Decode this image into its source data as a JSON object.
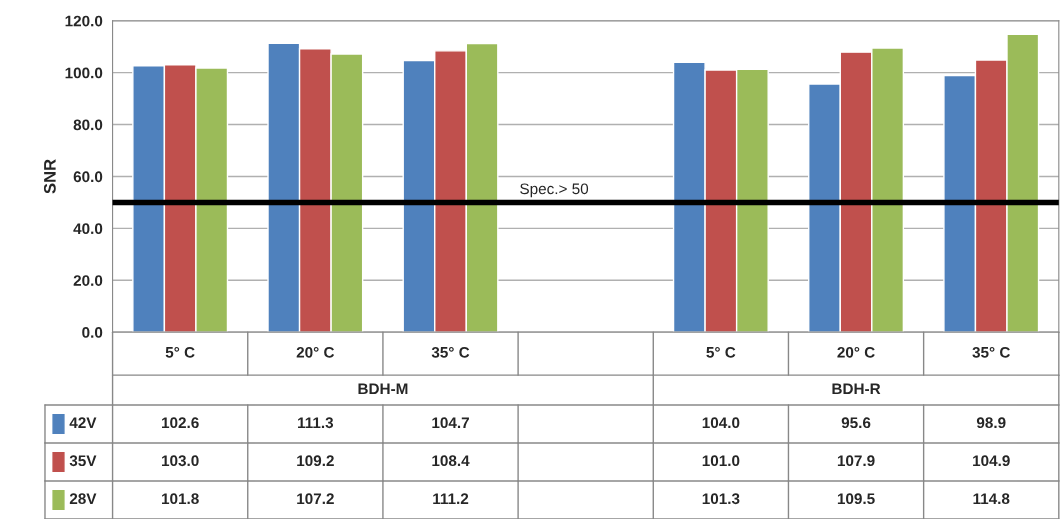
{
  "chart_data": {
    "type": "bar",
    "ylabel": "SNR",
    "categories": [
      "5° C",
      "20° C",
      "35° C",
      null,
      "5° C",
      "20° C",
      "35° C"
    ],
    "series": [
      {
        "name": "42V",
        "color": "#4f81bd",
        "values": [
          102.6,
          111.3,
          104.7,
          null,
          104.0,
          95.6,
          98.9
        ],
        "value_labels": [
          "102.6",
          "111.3",
          "104.7",
          null,
          "104.0",
          "95.6",
          "98.9"
        ]
      },
      {
        "name": "35V",
        "color": "#c0504d",
        "values": [
          103.0,
          109.2,
          108.4,
          null,
          101.0,
          107.9,
          104.9
        ],
        "value_labels": [
          "103.0",
          "109.2",
          "108.4",
          null,
          "101.0",
          "107.9",
          "104.9"
        ]
      },
      {
        "name": "28V",
        "color": "#9bbb59",
        "values": [
          101.8,
          107.2,
          111.2,
          null,
          101.3,
          109.5,
          114.8
        ],
        "value_labels": [
          "101.8",
          "107.2",
          "111.2",
          null,
          "101.3",
          "109.5",
          "114.8"
        ]
      }
    ],
    "ylim": [
      0,
      120
    ],
    "yticks": [
      {
        "value": 0,
        "label": "0.0"
      },
      {
        "value": 20,
        "label": "20.0"
      },
      {
        "value": 40,
        "label": "40.0"
      },
      {
        "value": 60,
        "label": "60.0"
      },
      {
        "value": 80,
        "label": "80.0"
      },
      {
        "value": 100,
        "label": "100.0"
      },
      {
        "value": 120,
        "label": "120.0"
      }
    ],
    "ref_lines": [
      {
        "axis": "y",
        "value": 50,
        "label": "Spec.> 50",
        "color": "#000000"
      }
    ],
    "annotations": [
      "BDH-M",
      "BDH-R"
    ],
    "grid": "y",
    "legend": "bottom"
  }
}
